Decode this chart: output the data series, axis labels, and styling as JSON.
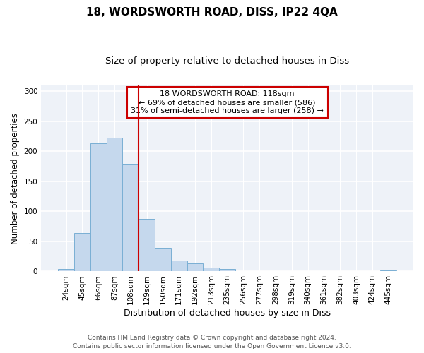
{
  "title1": "18, WORDSWORTH ROAD, DISS, IP22 4QA",
  "title2": "Size of property relative to detached houses in Diss",
  "xlabel": "Distribution of detached houses by size in Diss",
  "ylabel": "Number of detached properties",
  "bar_labels": [
    "24sqm",
    "45sqm",
    "66sqm",
    "87sqm",
    "108sqm",
    "129sqm",
    "150sqm",
    "171sqm",
    "192sqm",
    "213sqm",
    "235sqm",
    "256sqm",
    "277sqm",
    "298sqm",
    "319sqm",
    "340sqm",
    "361sqm",
    "382sqm",
    "403sqm",
    "424sqm",
    "445sqm"
  ],
  "bar_values": [
    4,
    64,
    213,
    222,
    178,
    88,
    39,
    18,
    14,
    6,
    4,
    1,
    0,
    0,
    0,
    0,
    0,
    0,
    0,
    0,
    2
  ],
  "bar_color": "#c5d8ed",
  "bar_edge_color": "#7aafd4",
  "vline_index": 4,
  "vline_color": "#cc0000",
  "annotation_text": "18 WORDSWORTH ROAD: 118sqm\n← 69% of detached houses are smaller (586)\n31% of semi-detached houses are larger (258) →",
  "annotation_box_edge": "#cc0000",
  "annotation_box_bg": "#ffffff",
  "ylim": [
    0,
    310
  ],
  "yticks": [
    0,
    50,
    100,
    150,
    200,
    250,
    300
  ],
  "footer1": "Contains HM Land Registry data © Crown copyright and database right 2024.",
  "footer2": "Contains public sector information licensed under the Open Government Licence v3.0.",
  "bg_color": "#ffffff",
  "plot_bg_color": "#eef2f8",
  "title1_fontsize": 11,
  "title2_fontsize": 9.5,
  "xlabel_fontsize": 9,
  "ylabel_fontsize": 8.5,
  "footer_fontsize": 6.5,
  "tick_fontsize": 7.5,
  "annot_fontsize": 8
}
